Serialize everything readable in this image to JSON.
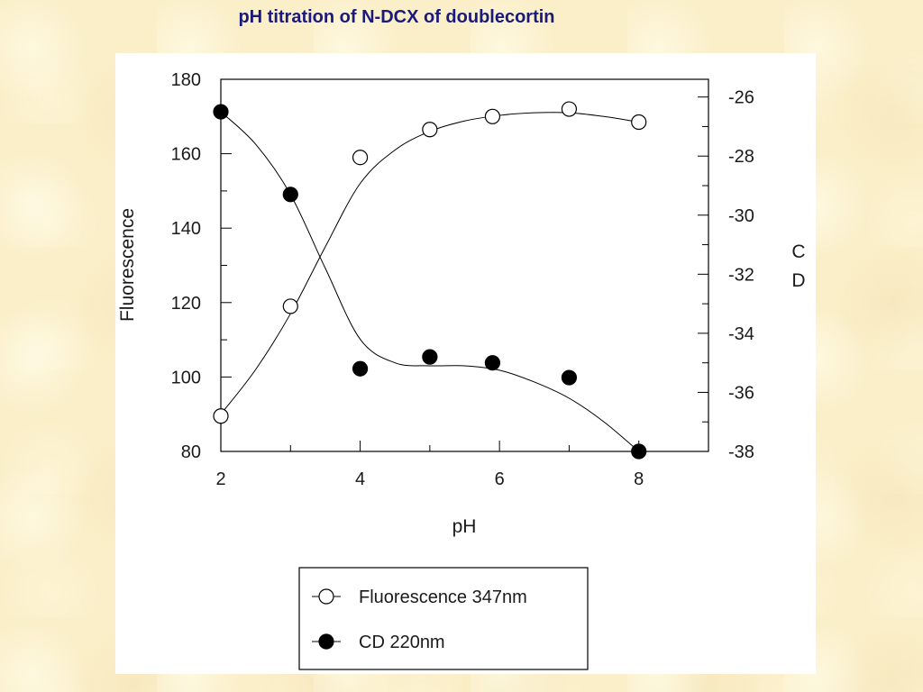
{
  "slide": {
    "title": "pH titration of N-DCX of doublecortin"
  },
  "chart_data": {
    "type": "scatter",
    "title": "pH titration of N-DCX of doublecortin",
    "xlabel": "pH",
    "ylabel": "Fluorescence",
    "y2label_lines": [
      "C",
      "D"
    ],
    "xlim": [
      2,
      9
    ],
    "ylim": [
      80,
      180
    ],
    "y2lim": [
      -38,
      -25.4
    ],
    "x_ticks": [
      2,
      4,
      6,
      8
    ],
    "y_ticks": [
      80,
      100,
      120,
      140,
      160,
      180
    ],
    "y2_ticks": [
      -38,
      -36,
      -34,
      -32,
      -30,
      -28,
      -26
    ],
    "grid": false,
    "legend": "bottom-center",
    "series": [
      {
        "name": "Fluorescence 347nm",
        "axis": "left",
        "marker": "open-circle",
        "x": [
          2,
          3,
          4,
          5,
          5.9,
          7,
          8
        ],
        "y": [
          89.5,
          119,
          159,
          166.5,
          170,
          172,
          168.5
        ],
        "curve": [
          [
            2,
            90
          ],
          [
            2.5,
            102
          ],
          [
            3,
            117
          ],
          [
            3.5,
            135
          ],
          [
            4,
            152
          ],
          [
            4.5,
            161
          ],
          [
            5,
            166
          ],
          [
            5.5,
            168.8
          ],
          [
            6,
            170.3
          ],
          [
            6.5,
            171
          ],
          [
            7,
            171
          ],
          [
            7.5,
            170
          ],
          [
            8,
            168.5
          ]
        ]
      },
      {
        "name": "CD 220nm",
        "axis": "right",
        "marker": "filled-circle",
        "x": [
          2,
          3,
          4,
          5,
          5.9,
          7,
          8
        ],
        "y": [
          -26.5,
          -29.3,
          -35.2,
          -34.8,
          -35,
          -35.5,
          -38
        ],
        "curve": [
          [
            2,
            -26.5
          ],
          [
            2.5,
            -27.6
          ],
          [
            3,
            -29.3
          ],
          [
            3.5,
            -31.8
          ],
          [
            4,
            -34.2
          ],
          [
            4.5,
            -35
          ],
          [
            5,
            -35.1
          ],
          [
            5.5,
            -35.1
          ],
          [
            6,
            -35.25
          ],
          [
            6.5,
            -35.65
          ],
          [
            7,
            -36.2
          ],
          [
            7.5,
            -37
          ],
          [
            8,
            -38
          ]
        ]
      }
    ]
  }
}
